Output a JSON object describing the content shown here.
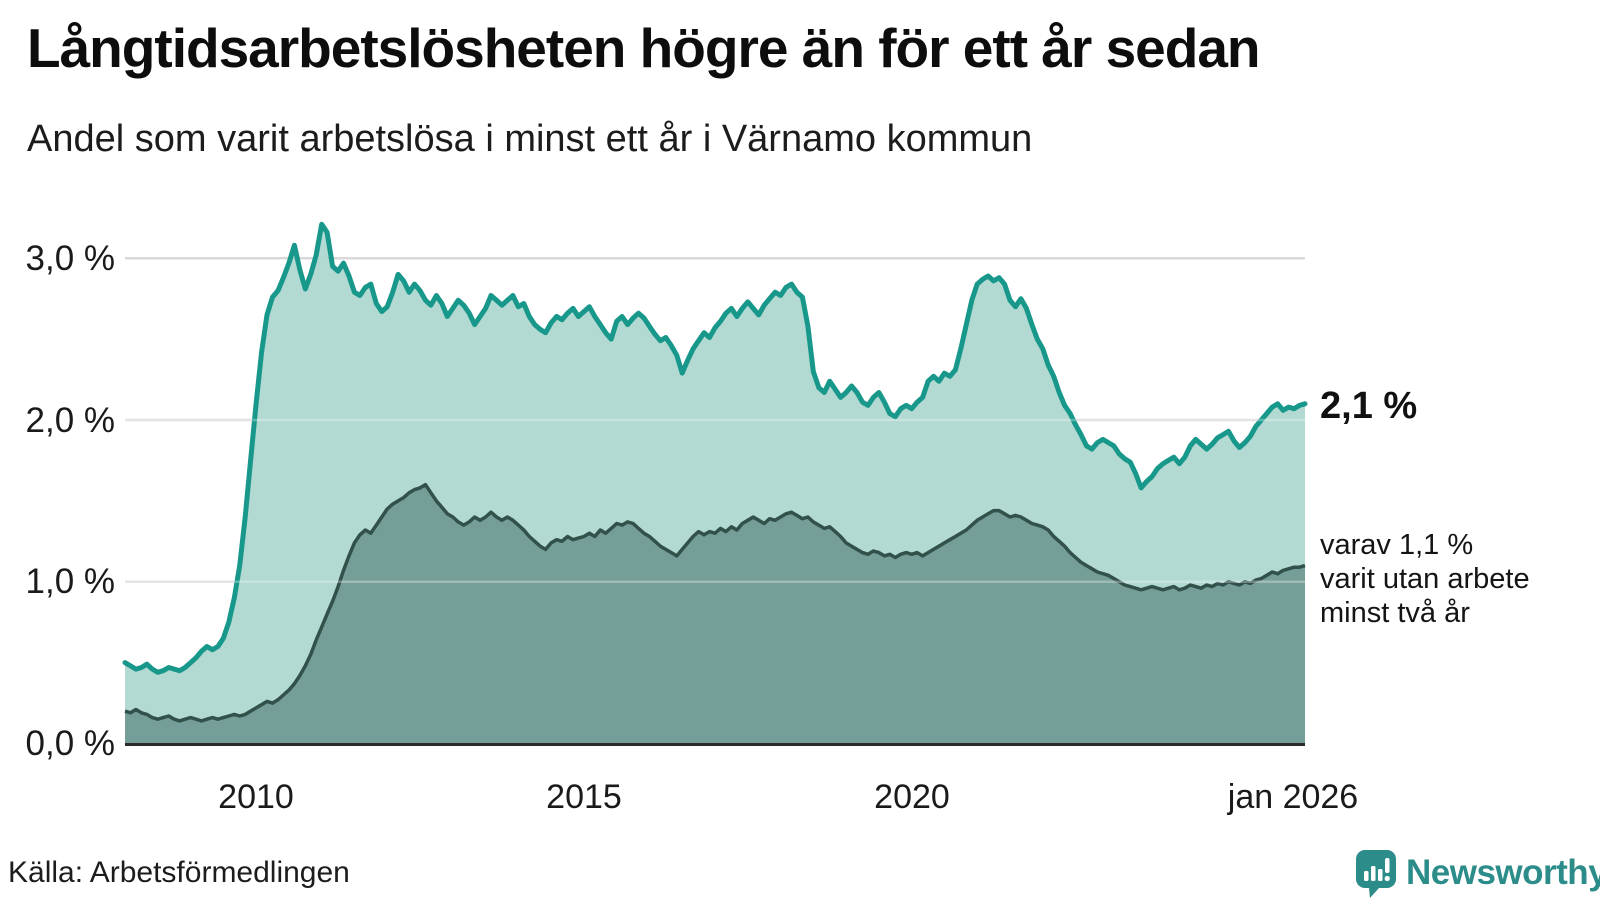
{
  "header": {
    "title": "Långtidsarbetslösheten högre än för ett år sedan",
    "subtitle": "Andel som varit arbetslösa i minst ett år i Värnamo kommun"
  },
  "annotations": {
    "latest_total": "2,1 %",
    "secondary_line1": "varav 1,1 %",
    "secondary_line2": "varit utan arbete",
    "secondary_line3": "minst två år"
  },
  "footer": {
    "source": "Källa: Arbetsförmedlingen",
    "brand": "Newsworthy"
  },
  "colors": {
    "line_total": "#18988b",
    "fill_total": "#aed8d0",
    "line_two_years": "#33514b",
    "fill_two_years": "#749e97",
    "gridline": "#d9d9dc",
    "axis": "#2b2b2b",
    "brand_teal": "#2c8c8a"
  },
  "chart_data": {
    "type": "area",
    "title": "Långtidsarbetslösheten högre än för ett år sedan",
    "subtitle": "Andel som varit arbetslösa i minst ett år i Värnamo kommun",
    "unit": "%",
    "frequency": "monthly",
    "x_start": "2008-01",
    "x_end": "2026-01",
    "ylim": [
      0,
      3.2
    ],
    "grid": true,
    "y_ticks": [
      {
        "label": "0,0 %",
        "value": 0
      },
      {
        "label": "1,0 %",
        "value": 1
      },
      {
        "label": "2,0 %",
        "value": 2
      },
      {
        "label": "3,0 %",
        "value": 3
      }
    ],
    "x_ticks": [
      {
        "label": "2010"
      },
      {
        "label": "2015"
      },
      {
        "label": "2020"
      },
      {
        "label": "jan 2026"
      }
    ],
    "series": [
      {
        "name": "Andel arbetslösa minst ett år",
        "latest_label": "2,1 %",
        "latest_value": 2.1,
        "values": [
          0.5,
          0.48,
          0.46,
          0.47,
          0.49,
          0.46,
          0.44,
          0.45,
          0.47,
          0.46,
          0.45,
          0.47,
          0.5,
          0.53,
          0.57,
          0.6,
          0.58,
          0.6,
          0.65,
          0.75,
          0.9,
          1.1,
          1.4,
          1.75,
          2.1,
          2.42,
          2.65,
          2.76,
          2.8,
          2.88,
          2.97,
          3.08,
          2.93,
          2.81,
          2.9,
          3.02,
          3.21,
          3.16,
          2.95,
          2.92,
          2.97,
          2.89,
          2.79,
          2.77,
          2.82,
          2.84,
          2.72,
          2.67,
          2.7,
          2.79,
          2.9,
          2.86,
          2.79,
          2.84,
          2.8,
          2.74,
          2.71,
          2.77,
          2.72,
          2.64,
          2.69,
          2.74,
          2.71,
          2.66,
          2.59,
          2.64,
          2.69,
          2.77,
          2.74,
          2.71,
          2.74,
          2.77,
          2.7,
          2.72,
          2.64,
          2.59,
          2.56,
          2.54,
          2.6,
          2.64,
          2.62,
          2.66,
          2.69,
          2.64,
          2.67,
          2.7,
          2.64,
          2.59,
          2.54,
          2.5,
          2.61,
          2.64,
          2.59,
          2.63,
          2.66,
          2.63,
          2.58,
          2.53,
          2.49,
          2.51,
          2.46,
          2.4,
          2.29,
          2.37,
          2.44,
          2.49,
          2.54,
          2.51,
          2.57,
          2.61,
          2.66,
          2.69,
          2.64,
          2.69,
          2.73,
          2.69,
          2.65,
          2.71,
          2.75,
          2.79,
          2.77,
          2.82,
          2.84,
          2.79,
          2.76,
          2.58,
          2.3,
          2.2,
          2.17,
          2.24,
          2.19,
          2.14,
          2.17,
          2.21,
          2.17,
          2.11,
          2.09,
          2.14,
          2.17,
          2.11,
          2.04,
          2.02,
          2.07,
          2.09,
          2.07,
          2.11,
          2.14,
          2.24,
          2.27,
          2.24,
          2.29,
          2.27,
          2.31,
          2.44,
          2.59,
          2.74,
          2.84,
          2.87,
          2.89,
          2.86,
          2.88,
          2.84,
          2.74,
          2.7,
          2.75,
          2.69,
          2.59,
          2.5,
          2.44,
          2.34,
          2.27,
          2.17,
          2.09,
          2.04,
          1.97,
          1.91,
          1.84,
          1.82,
          1.86,
          1.88,
          1.86,
          1.84,
          1.79,
          1.76,
          1.74,
          1.67,
          1.58,
          1.62,
          1.65,
          1.7,
          1.73,
          1.75,
          1.77,
          1.73,
          1.77,
          1.84,
          1.88,
          1.85,
          1.82,
          1.85,
          1.89,
          1.91,
          1.93,
          1.87,
          1.83,
          1.86,
          1.9,
          1.96,
          2.0,
          2.04,
          2.08,
          2.1,
          2.06,
          2.08,
          2.07,
          2.09,
          2.1
        ]
      },
      {
        "name": "varav utan arbete minst två år",
        "latest_label": "1,1 %",
        "latest_value": 1.1,
        "values": [
          0.2,
          0.19,
          0.21,
          0.19,
          0.18,
          0.16,
          0.15,
          0.16,
          0.17,
          0.15,
          0.14,
          0.15,
          0.16,
          0.15,
          0.14,
          0.15,
          0.16,
          0.15,
          0.16,
          0.17,
          0.18,
          0.17,
          0.18,
          0.2,
          0.22,
          0.24,
          0.26,
          0.25,
          0.27,
          0.3,
          0.33,
          0.37,
          0.42,
          0.48,
          0.55,
          0.64,
          0.72,
          0.8,
          0.88,
          0.97,
          1.07,
          1.16,
          1.24,
          1.29,
          1.32,
          1.3,
          1.35,
          1.4,
          1.45,
          1.48,
          1.5,
          1.52,
          1.55,
          1.57,
          1.58,
          1.6,
          1.55,
          1.5,
          1.46,
          1.42,
          1.4,
          1.37,
          1.35,
          1.37,
          1.4,
          1.38,
          1.4,
          1.43,
          1.4,
          1.38,
          1.4,
          1.38,
          1.35,
          1.32,
          1.28,
          1.25,
          1.22,
          1.2,
          1.24,
          1.26,
          1.25,
          1.28,
          1.26,
          1.27,
          1.28,
          1.3,
          1.28,
          1.32,
          1.3,
          1.33,
          1.36,
          1.35,
          1.37,
          1.36,
          1.33,
          1.3,
          1.28,
          1.25,
          1.22,
          1.2,
          1.18,
          1.16,
          1.2,
          1.24,
          1.28,
          1.31,
          1.29,
          1.31,
          1.3,
          1.33,
          1.31,
          1.34,
          1.32,
          1.36,
          1.38,
          1.4,
          1.38,
          1.36,
          1.39,
          1.38,
          1.4,
          1.42,
          1.43,
          1.41,
          1.39,
          1.4,
          1.37,
          1.35,
          1.33,
          1.34,
          1.31,
          1.28,
          1.24,
          1.22,
          1.2,
          1.18,
          1.17,
          1.19,
          1.18,
          1.16,
          1.17,
          1.15,
          1.17,
          1.18,
          1.17,
          1.18,
          1.16,
          1.18,
          1.2,
          1.22,
          1.24,
          1.26,
          1.28,
          1.3,
          1.32,
          1.35,
          1.38,
          1.4,
          1.42,
          1.44,
          1.44,
          1.42,
          1.4,
          1.41,
          1.4,
          1.38,
          1.36,
          1.35,
          1.34,
          1.32,
          1.28,
          1.25,
          1.22,
          1.18,
          1.15,
          1.12,
          1.1,
          1.08,
          1.06,
          1.05,
          1.04,
          1.02,
          1.0,
          0.98,
          0.97,
          0.96,
          0.95,
          0.96,
          0.97,
          0.96,
          0.95,
          0.96,
          0.97,
          0.95,
          0.96,
          0.98,
          0.97,
          0.96,
          0.98,
          0.97,
          0.99,
          0.98,
          1.0,
          0.99,
          0.98,
          1.0,
          0.99,
          1.01,
          1.02,
          1.04,
          1.06,
          1.05,
          1.07,
          1.08,
          1.09,
          1.09,
          1.1
        ]
      }
    ]
  }
}
